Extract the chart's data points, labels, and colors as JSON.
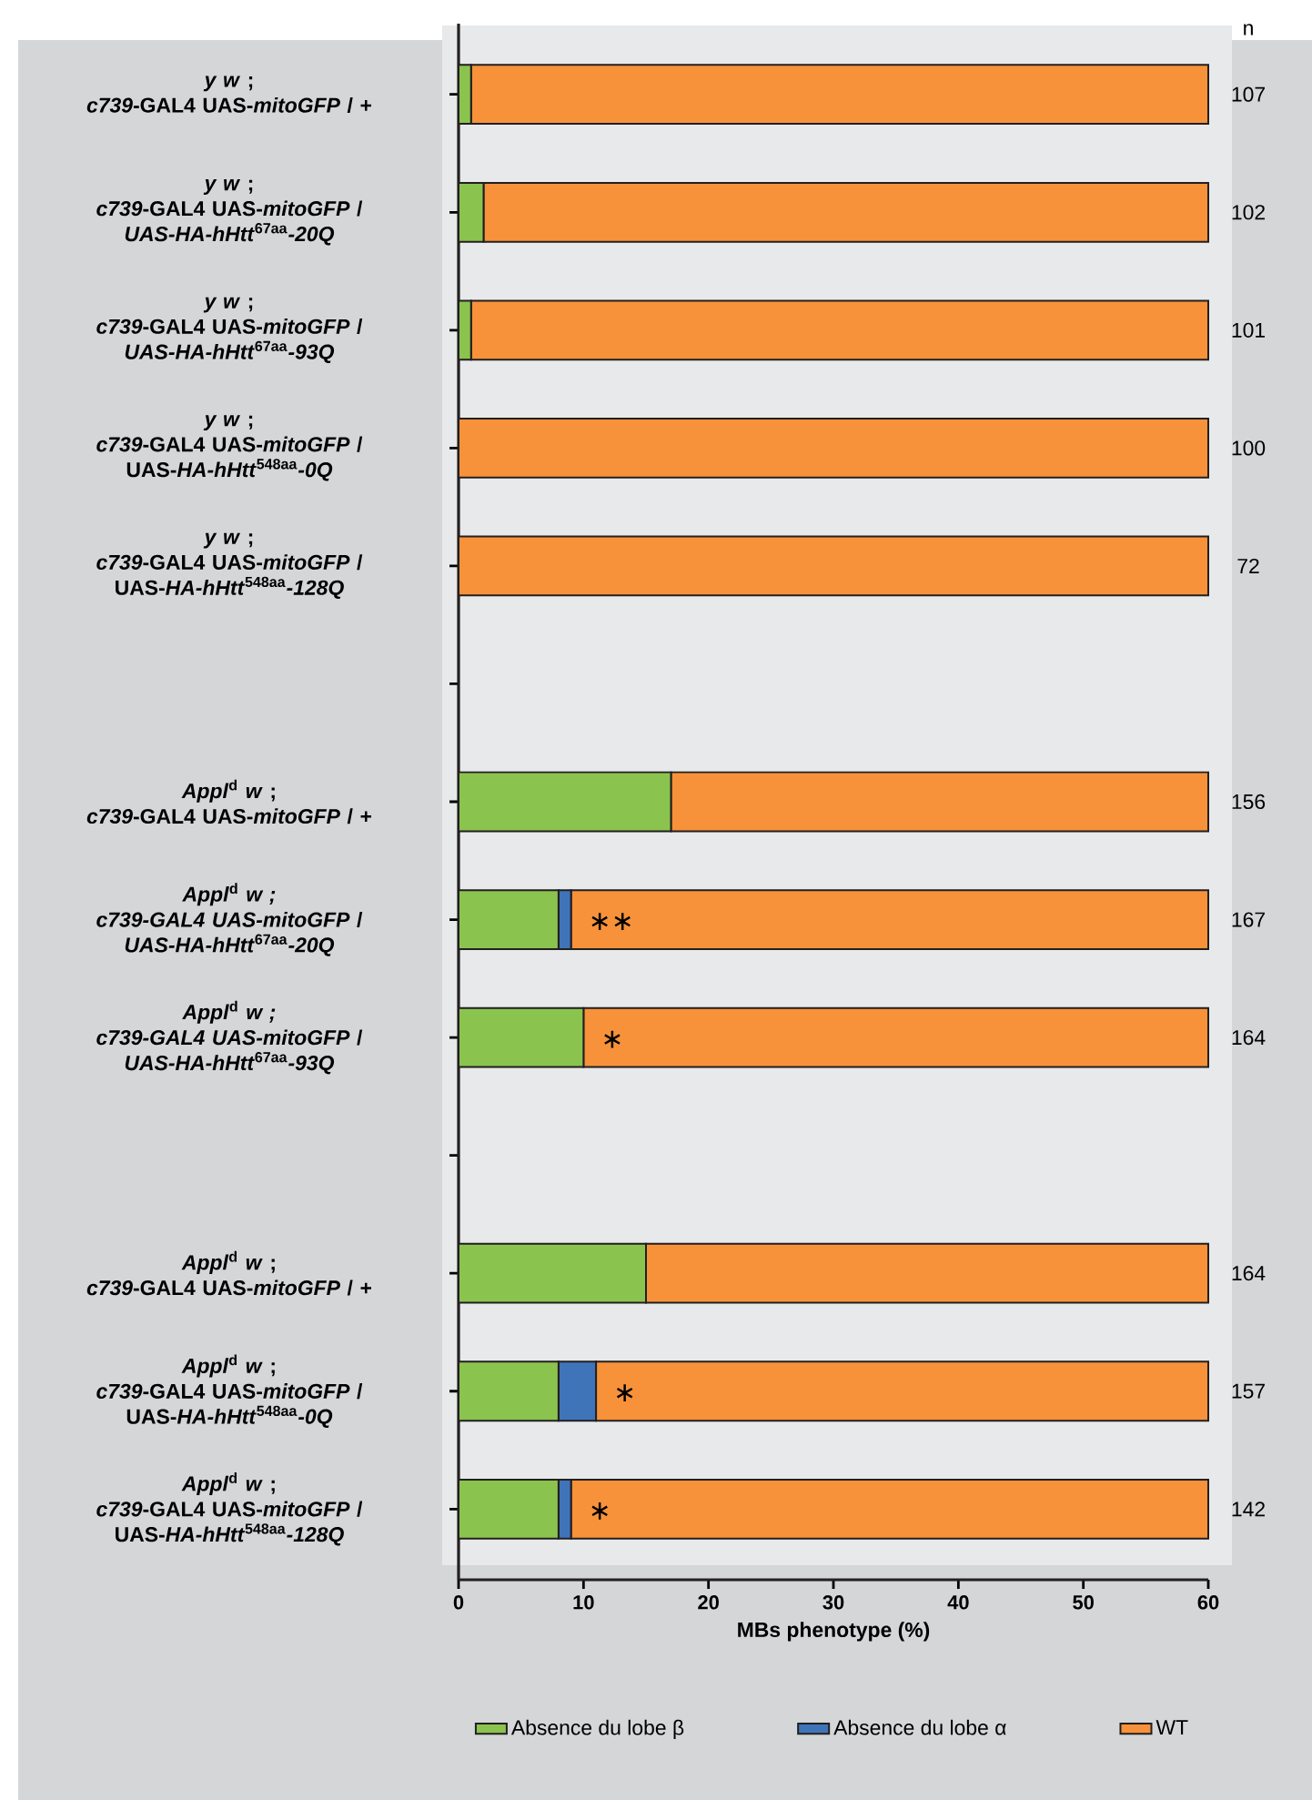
{
  "chart_data": {
    "type": "bar",
    "orientation": "horizontal",
    "stacked": true,
    "categories": [
      "*y w* ;\n*c739*-GAL4 UAS-*mitoGFP* / +",
      "*y w* ;\n*c739*-GAL4 UAS-*mitoGFP* /\n*UAS-HA-hHtt*$^{67aa}$*-20Q*",
      "*y w* ;\n*c739*-GAL4 UAS-*mitoGFP* /\n*UAS-HA-hHtt*$^{67aa}$*-93Q*",
      "*y w* ;\n*c739*-GAL4 UAS-*mitoGFP* /\nUAS-*HA-hHtt*$^{548aa}$*-0Q*",
      "*y w* ;\n*c739*-GAL4 UAS-*mitoGFP* /\nUAS-*HA-hHtt*$^{548aa}$*-128Q*",
      null,
      "*Appl*$^{d}$ *w* ;\n*c739*-GAL4 UAS-*mitoGFP* / +",
      "*Appl*$^{d}$ *w ;*\n*c739-GAL4 UAS-mitoGFP* /\n*UAS-HA-hHtt*$^{67aa}$*-20Q*",
      "*Appl*$^{d}$ *w ;*\n*c739-GAL4 UAS-mitoGFP* /\n*UAS-HA-hHtt*$^{67aa}$*-93Q*",
      null,
      "*Appl*$^{d}$ *w* ;\n*c739*-GAL4 UAS-*mitoGFP* / +",
      "*Appl*$^{d}$ *w* ;\n*c739*-GAL4 UAS-*mitoGFP* /\nUAS-*HA-hHtt*$^{548aa}$*-0Q*",
      "*Appl*$^{d}$ *w* ;\n*c739*-GAL4 UAS-*mitoGFP* /\nUAS-*HA-hHtt*$^{548aa}$*-128Q*"
    ],
    "series": [
      {
        "name": "Absence du lobe β",
        "color": "#8bc34f",
        "values": [
          1,
          2,
          1,
          0,
          0,
          null,
          17,
          8,
          10,
          null,
          15,
          8,
          8
        ]
      },
      {
        "name": "Absence du lobe α",
        "color": "#3f74b9",
        "values": [
          0,
          0,
          0,
          0,
          0,
          null,
          0,
          1,
          0,
          null,
          0,
          3,
          1
        ]
      },
      {
        "name": "WT",
        "color": "#f7923a",
        "values": [
          59,
          58,
          59,
          60,
          60,
          null,
          43,
          51,
          50,
          null,
          45,
          49,
          51
        ],
        "value_labels": [
          null,
          null,
          null,
          null,
          null,
          null,
          null,
          "∗∗",
          "∗",
          null,
          null,
          "∗",
          "∗"
        ]
      }
    ],
    "xlabel": "MBs phenotype (%)",
    "xlim": [
      0,
      60
    ],
    "xticks": [
      0,
      10,
      20,
      30,
      40,
      50,
      60
    ],
    "legend": "bottom",
    "annotations": [
      "n",
      "107",
      "102",
      "101",
      "100",
      "72",
      "156",
      "167",
      "164",
      "164",
      "157",
      "142"
    ]
  }
}
